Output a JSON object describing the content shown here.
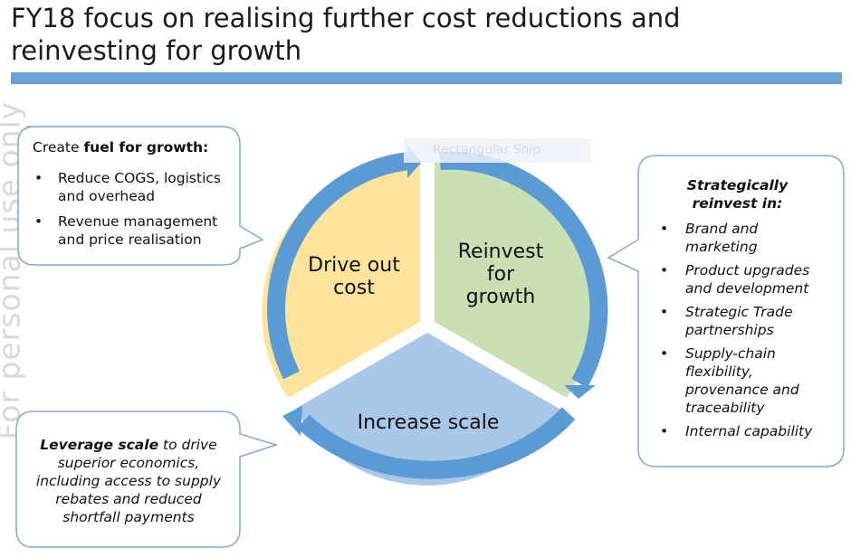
{
  "title": {
    "line1": "FY18 focus on realising further cost reductions and",
    "line2": "reinvesting for growth"
  },
  "watermark": "For personal use only",
  "snip_overlay": "Rectangular Snip",
  "cycle": {
    "drive_out_cost": {
      "line1": "Drive out",
      "line2": "cost"
    },
    "reinvest": {
      "line1": "Reinvest",
      "line2": "for",
      "line3": "growth"
    },
    "increase_scale": "Increase scale"
  },
  "left_callout": {
    "intro": "Create ",
    "intro_bold": "fuel for growth:",
    "bullets": [
      {
        "line1": "Reduce COGS, logistics",
        "line2": "and overhead"
      },
      {
        "line1": "Revenue management",
        "line2": "and price realisation"
      }
    ]
  },
  "right_callout": {
    "heading_line1": "Strategically",
    "heading_line2": "reinvest in:",
    "bullets": [
      {
        "lines": [
          "Brand and",
          "marketing"
        ]
      },
      {
        "lines": [
          "Product upgrades",
          "and development"
        ]
      },
      {
        "lines": [
          "Strategic Trade",
          "partnerships"
        ]
      },
      {
        "lines": [
          "Supply-chain",
          "flexibility,",
          "provenance and",
          "traceability"
        ]
      },
      {
        "lines": [
          "Internal capability"
        ]
      }
    ]
  },
  "bottom_callout": {
    "bold": "Leverage scale",
    "rest_line1": " to drive",
    "line2": "superior economics,",
    "line3": "including access to supply",
    "line4": "rebates and reduced",
    "line5": "shortfall payments"
  },
  "colors": {
    "title_bar": "#6aa0d4",
    "yellow_segment": "#fde49a",
    "green_segment": "#c8e0b4",
    "blue_segment": "#a9c8e8",
    "arrow": "#5b9bd5",
    "callout_border": "#7fa9d6"
  }
}
